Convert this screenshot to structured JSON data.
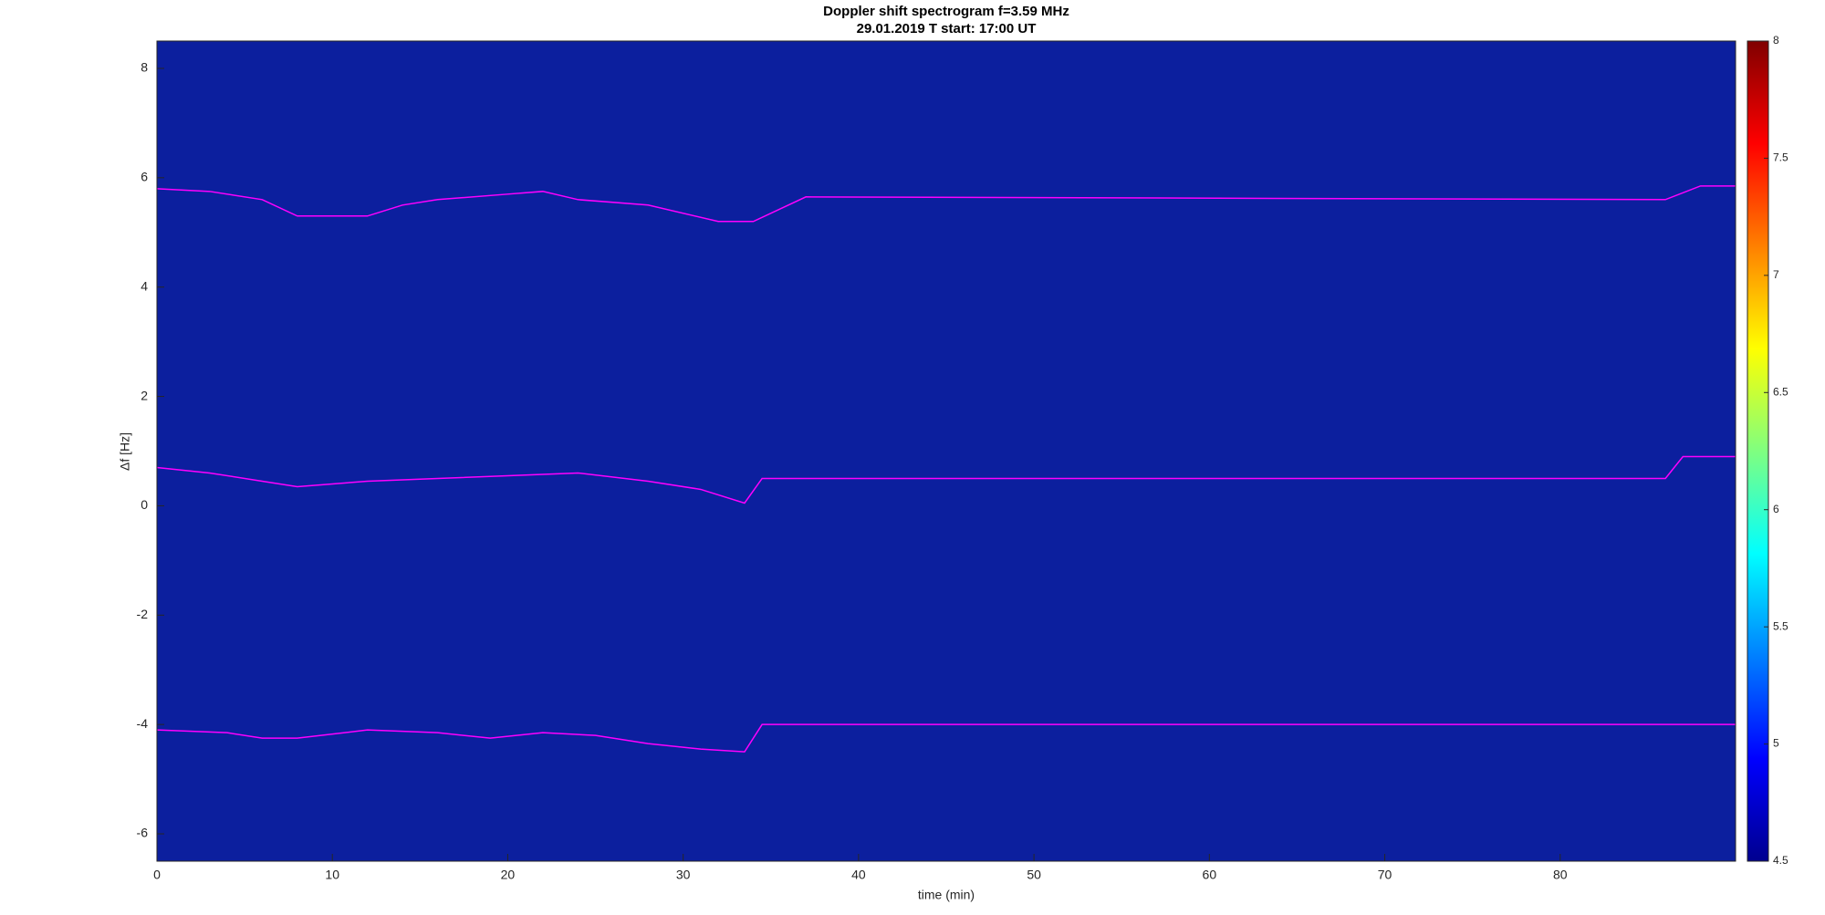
{
  "chart_data": {
    "type": "spectrogram",
    "title": "Doppler shift spectrogram f=3.59 MHz",
    "subtitle": "29.01.2019   T start: 17:00 UT",
    "x_label": "time (min)",
    "y_label": "Δf [Hz]",
    "xlim": [
      0,
      90
    ],
    "xticks": [
      0,
      10,
      20,
      30,
      40,
      50,
      60,
      70,
      80
    ],
    "ylim": [
      -6.5,
      8.5
    ],
    "yticks": [
      -6,
      -4,
      -2,
      0,
      2,
      4,
      6,
      8
    ],
    "background": "#0c1f9e",
    "colormap": "jet",
    "clim": [
      4.5,
      8
    ],
    "cticks": [
      4.5,
      5,
      5.5,
      6,
      6.5,
      7,
      7.5,
      8
    ],
    "series": [
      {
        "color": "#ff00ff",
        "x": [
          0,
          3,
          6,
          8,
          10,
          12,
          14,
          16,
          20,
          22,
          24,
          28,
          32,
          34,
          37,
          86,
          88,
          90
        ],
        "values": [
          5.8,
          5.75,
          5.6,
          5.3,
          5.3,
          5.3,
          5.5,
          5.6,
          5.7,
          5.75,
          5.6,
          5.5,
          5.2,
          5.2,
          5.65,
          5.6,
          5.85,
          5.85
        ]
      },
      {
        "color": "#ff00ff",
        "x": [
          0,
          3,
          6,
          8,
          12,
          16,
          20,
          24,
          28,
          31,
          33.5,
          34.5,
          86,
          87,
          90
        ],
        "values": [
          0.7,
          0.6,
          0.45,
          0.35,
          0.45,
          0.5,
          0.55,
          0.6,
          0.45,
          0.3,
          0.05,
          0.5,
          0.5,
          0.9,
          0.9
        ]
      },
      {
        "color": "#ff00ff",
        "x": [
          0,
          4,
          6,
          8,
          12,
          16,
          19,
          22,
          25,
          28,
          31,
          33.5,
          34.5,
          90
        ],
        "values": [
          -4.1,
          -4.15,
          -4.25,
          -4.25,
          -4.1,
          -4.15,
          -4.25,
          -4.15,
          -4.2,
          -4.35,
          -4.45,
          -4.5,
          -4.0,
          -4.0
        ]
      }
    ]
  }
}
